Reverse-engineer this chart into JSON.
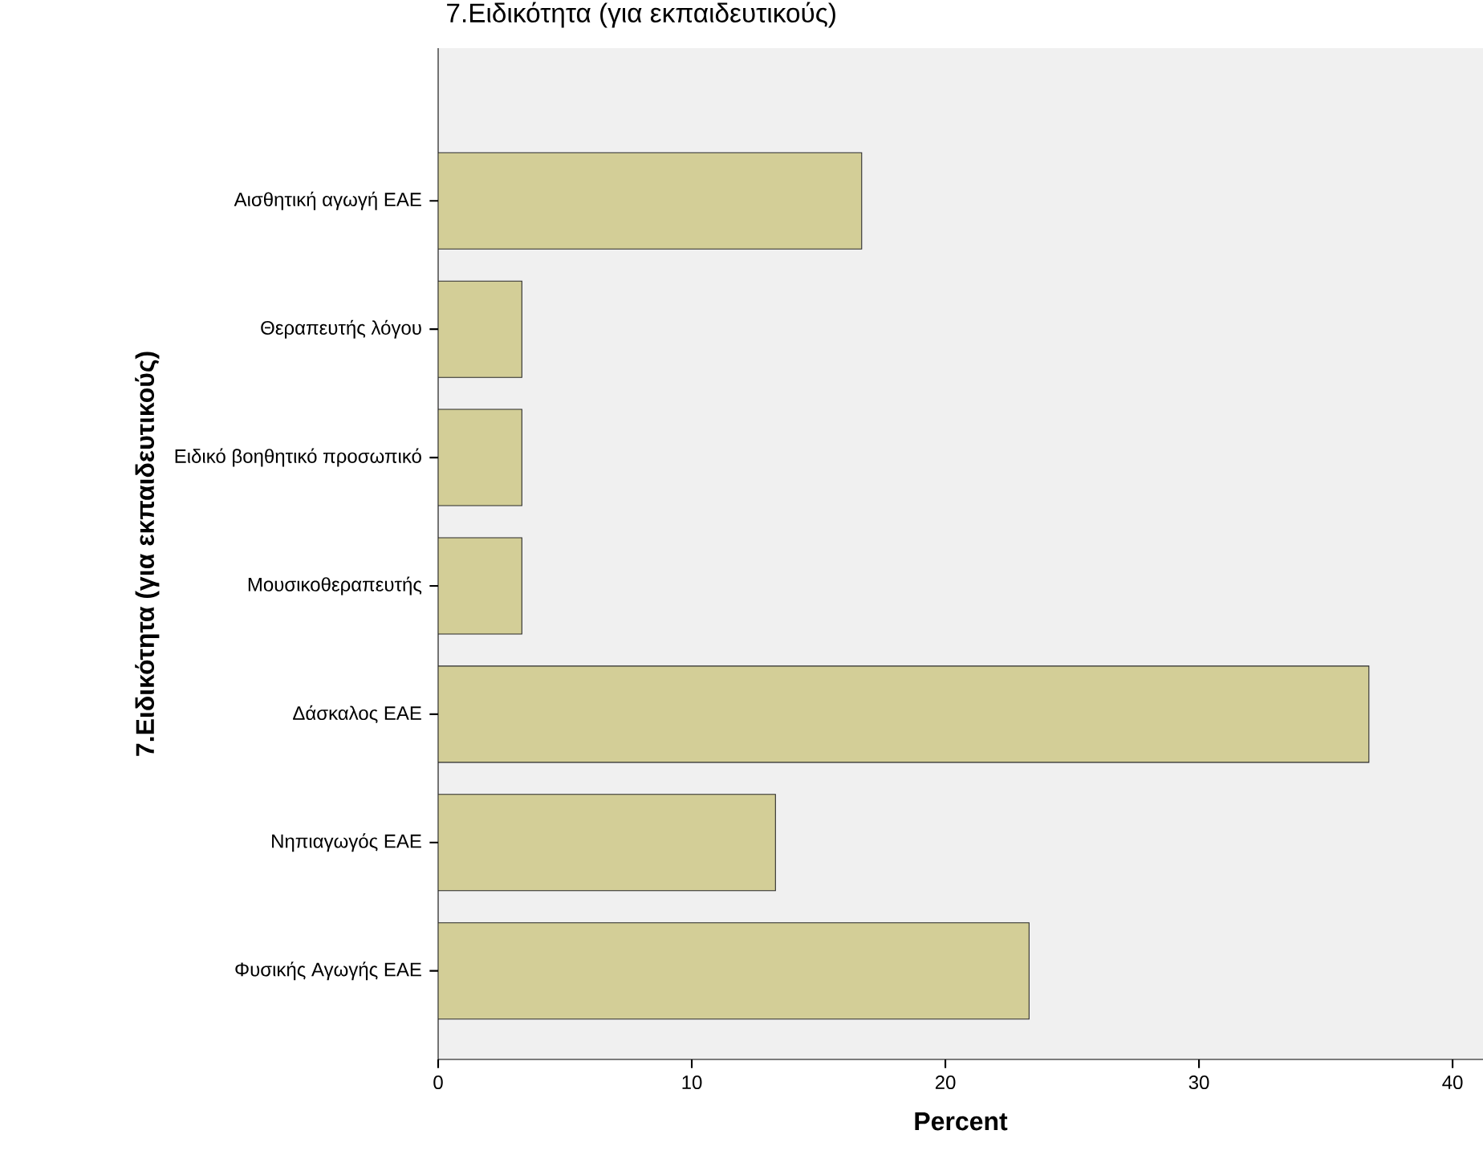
{
  "chart_data": {
    "type": "bar",
    "orientation": "horizontal",
    "title": "7.Ειδικότητα (για εκπαιδευτικούς)",
    "xlabel": "Percent",
    "ylabel": "7.Ειδικότητα (για εκπαιδευτικούς)",
    "categories": [
      "Αισθητική αγωγή ΕΑΕ",
      "Θεραπευτής λόγου",
      "Ειδικό βοηθητικό προσωπικό",
      "Μουσικοθεραπευτής",
      "Δάσκαλος ΕΑΕ",
      "Νηπιαγωγός ΕΑΕ",
      "Φυσικής Αγωγής ΕΑΕ"
    ],
    "values": [
      16.7,
      3.3,
      3.3,
      3.3,
      36.7,
      13.3,
      23.3
    ],
    "color": "#d3ce97",
    "xlim": [
      0,
      41.2
    ],
    "xticks": [
      0,
      10,
      20,
      30,
      40
    ]
  }
}
